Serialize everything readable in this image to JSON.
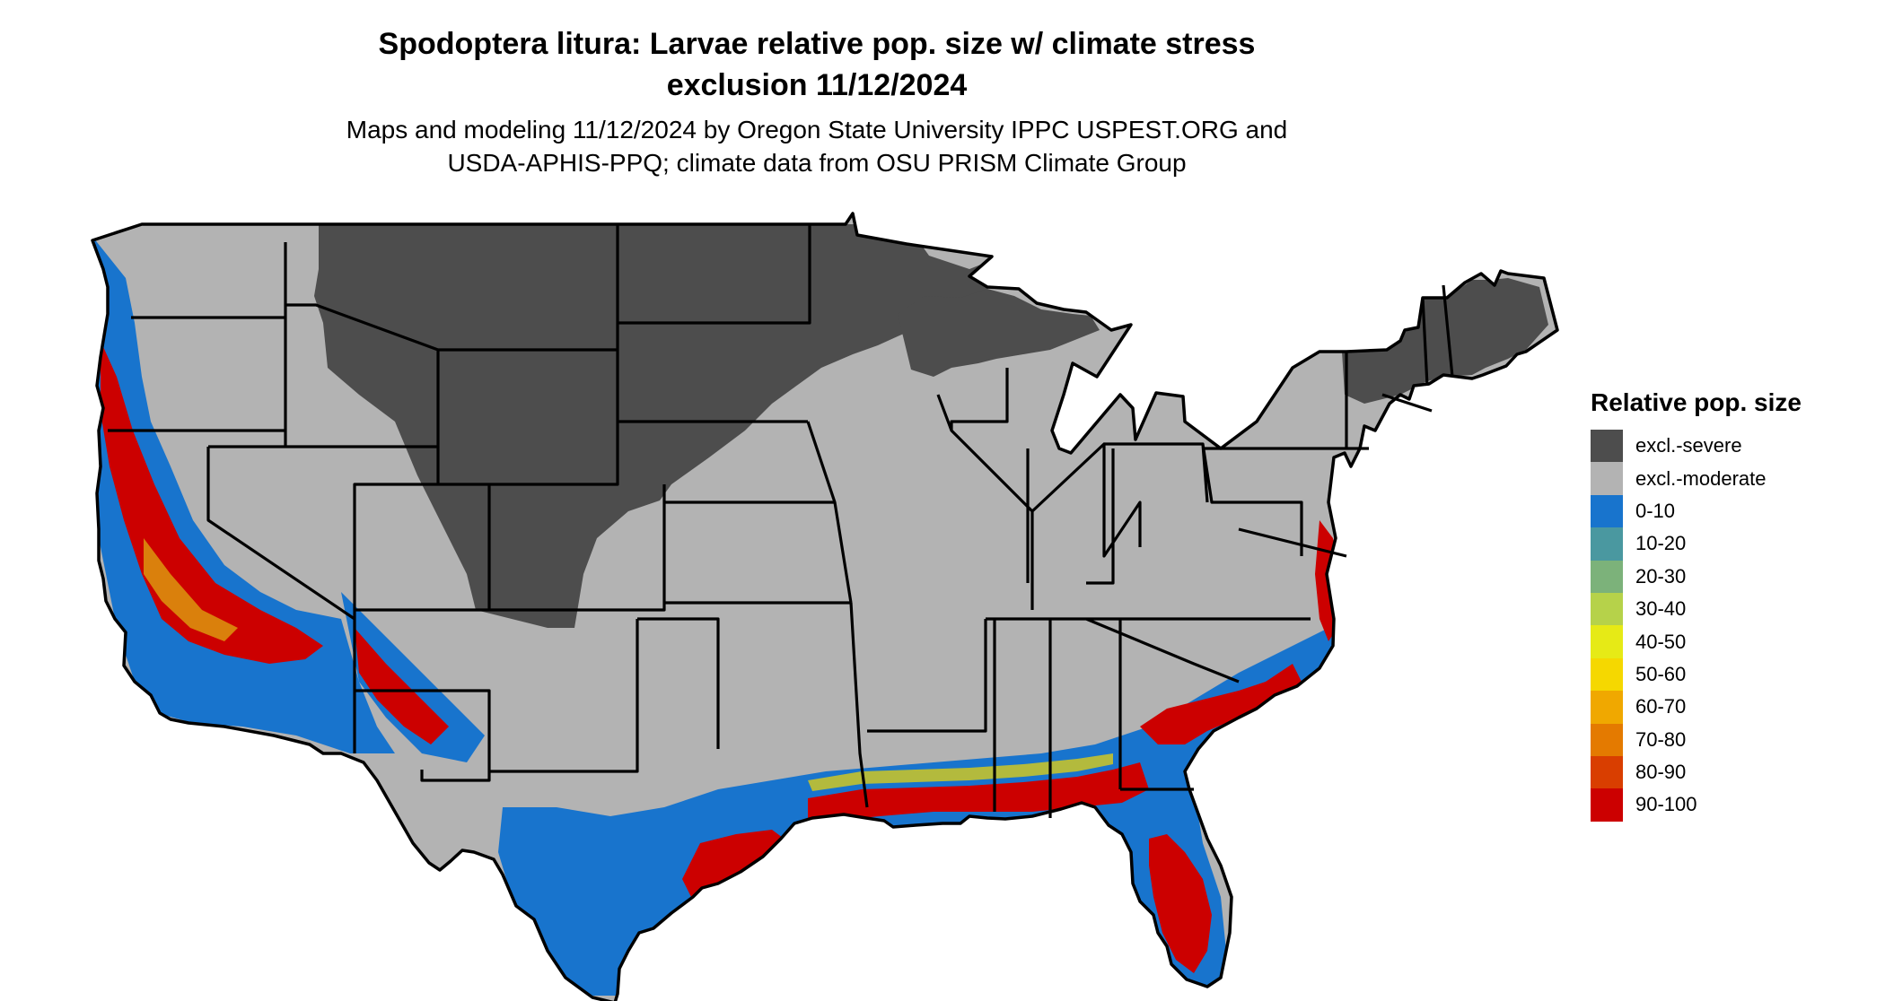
{
  "title": {
    "line1": "Spodoptera litura: Larvae relative pop. size w/ climate stress",
    "line2": "exclusion 11/12/2024"
  },
  "subtitle": {
    "line1": "Maps and modeling 11/12/2024 by Oregon State University IPPC USPEST.ORG and",
    "line2": "USDA-APHIS-PPQ; climate data from OSU PRISM Climate Group"
  },
  "legend": {
    "title": "Relative pop. size",
    "items": [
      {
        "label": "excl.-severe",
        "color": "#4d4d4d"
      },
      {
        "label": "excl.-moderate",
        "color": "#b3b3b3"
      },
      {
        "label": "0-10",
        "color": "#1874cd"
      },
      {
        "label": "10-20",
        "color": "#4a98a0"
      },
      {
        "label": "20-30",
        "color": "#7cb27a"
      },
      {
        "label": "30-40",
        "color": "#b6d24a"
      },
      {
        "label": "40-50",
        "color": "#e6ea16"
      },
      {
        "label": "50-60",
        "color": "#f5d800"
      },
      {
        "label": "60-70",
        "color": "#f0a800"
      },
      {
        "label": "70-80",
        "color": "#e47a00"
      },
      {
        "label": "80-90",
        "color": "#d93e00"
      },
      {
        "label": "90-100",
        "color": "#cc0000"
      }
    ]
  },
  "map": {
    "land_color": "#b3b3b3",
    "border_color": "#000000"
  }
}
